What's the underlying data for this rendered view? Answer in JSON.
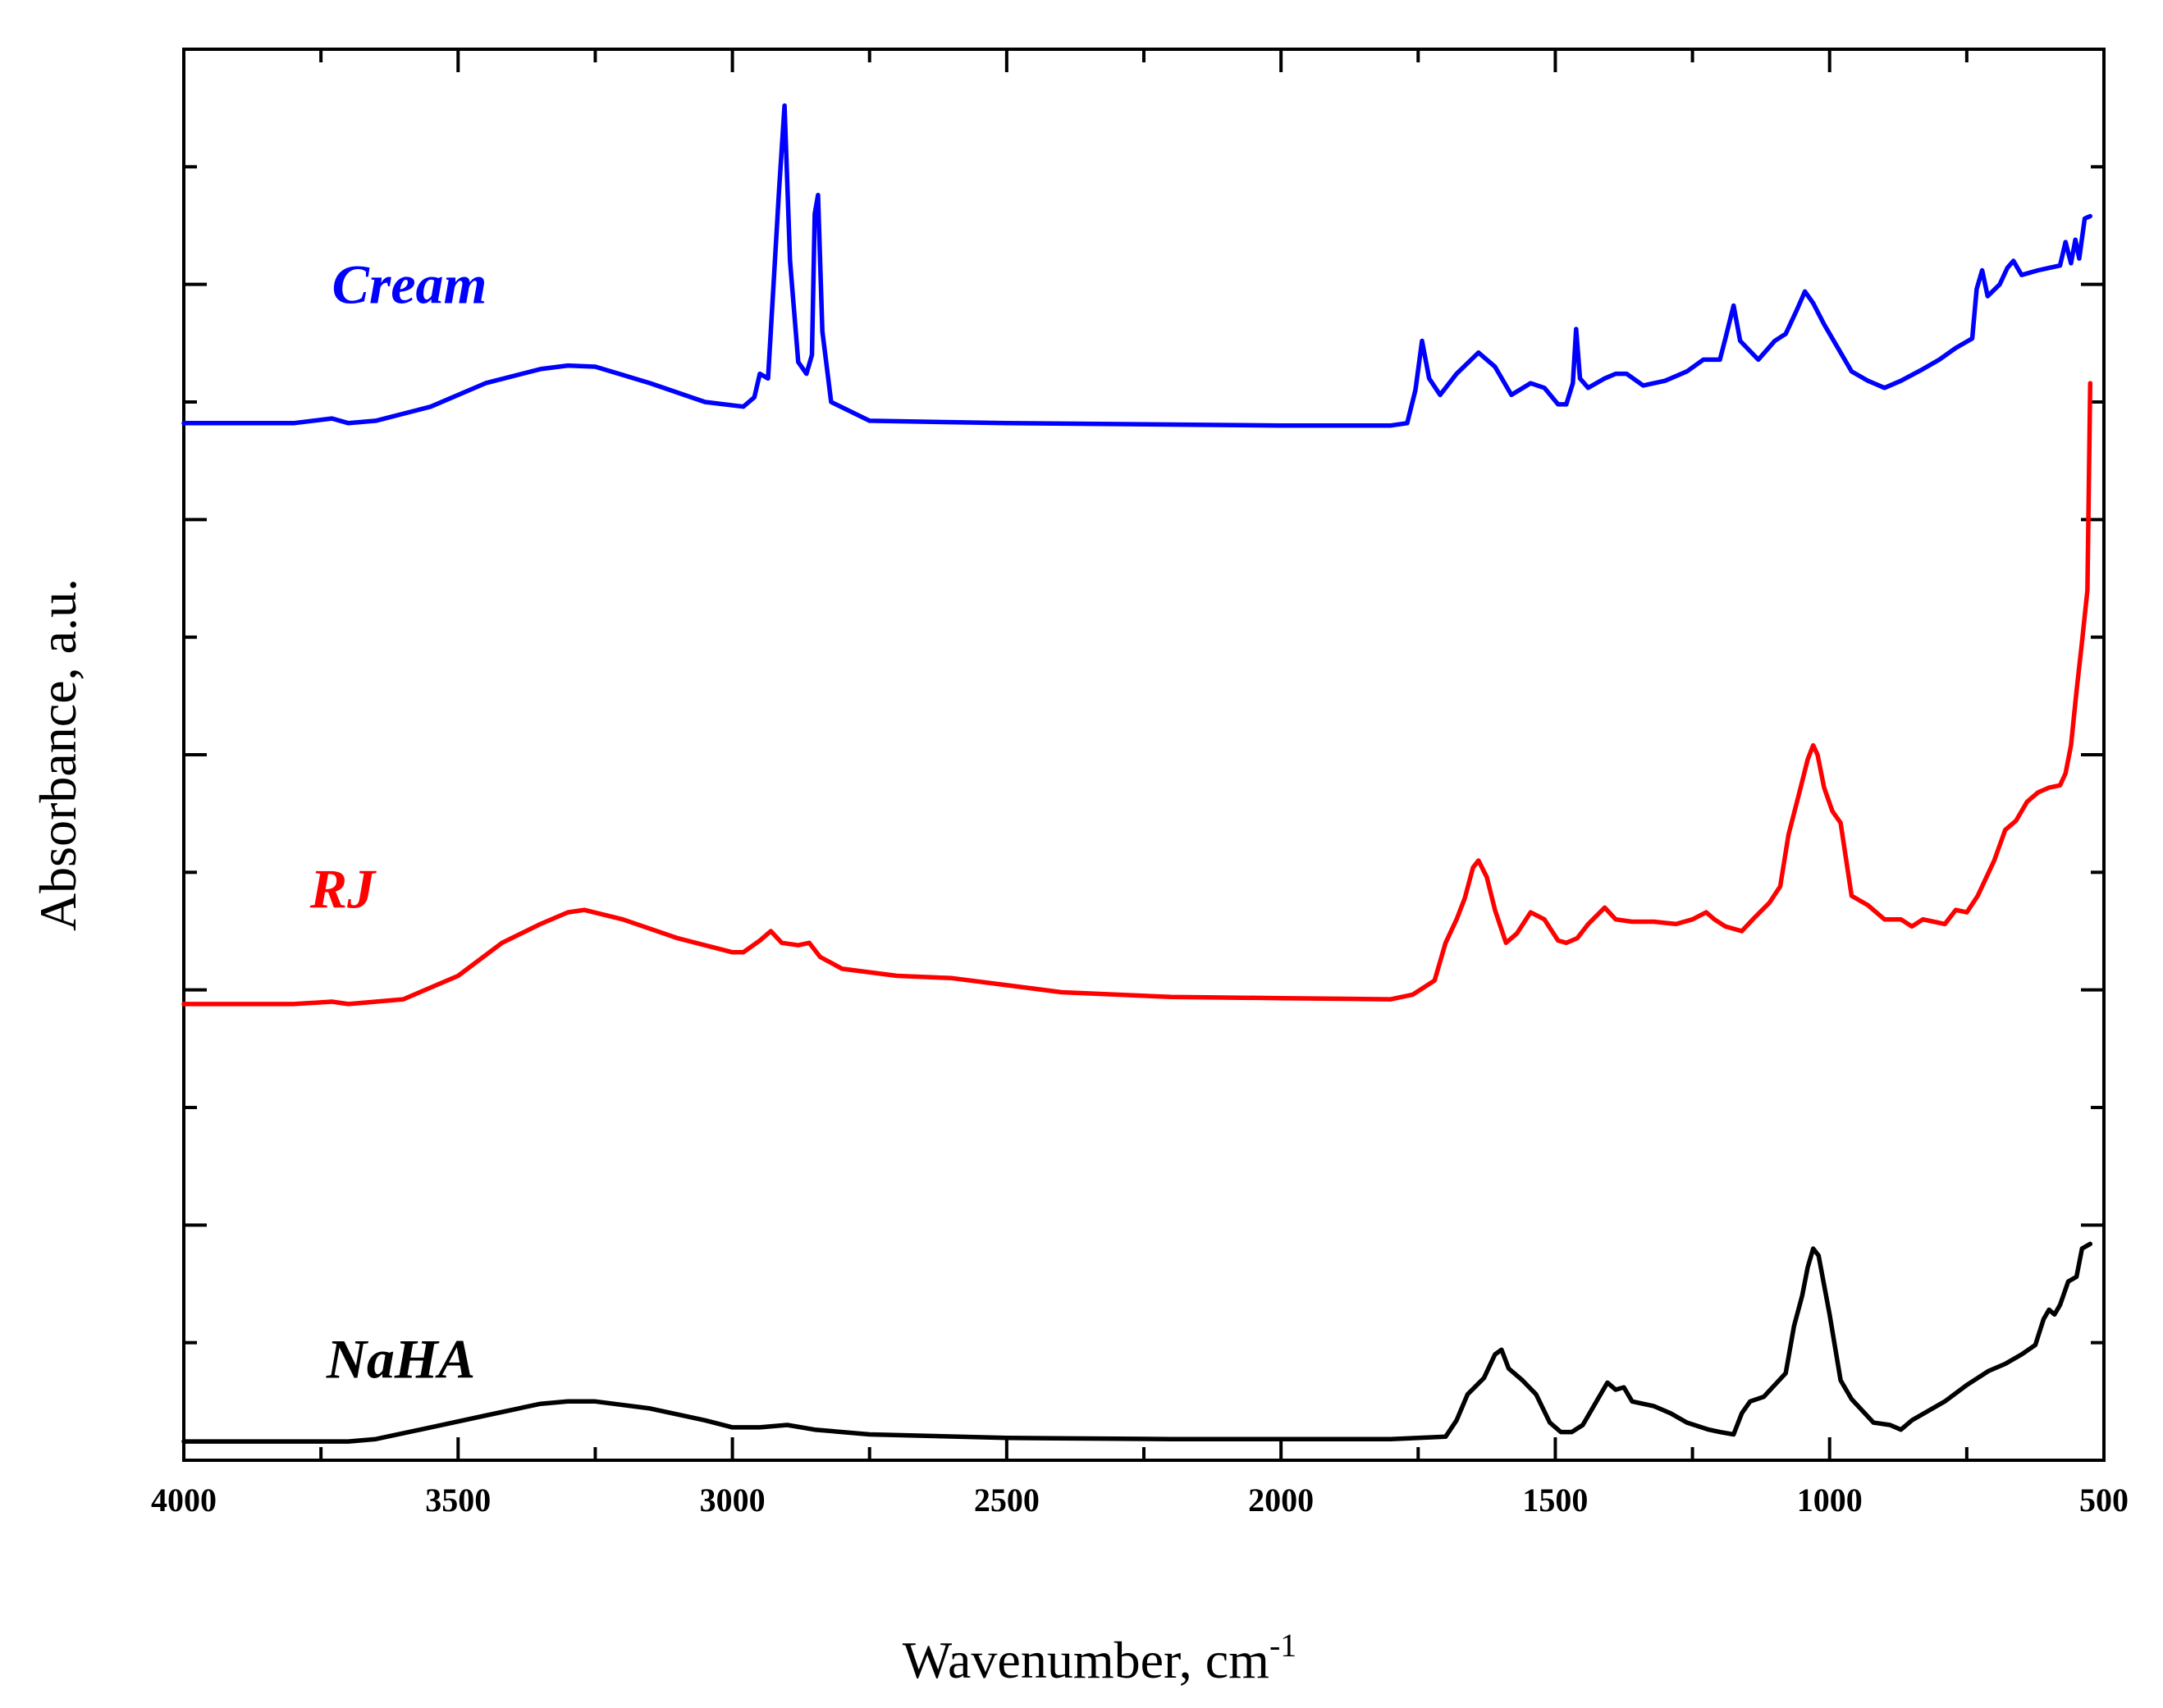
{
  "chart_data": {
    "type": "line",
    "title": "",
    "xlabel": "Wavenumber, cm",
    "xlabel_superscript": "-1",
    "ylabel": "Absorbance, a.u.",
    "xlim": [
      4000,
      500
    ],
    "x_reversed": true,
    "ylim": [
      0,
      6
    ],
    "x_ticks": [
      4000,
      3500,
      3000,
      2500,
      2000,
      1500,
      1000,
      500
    ],
    "x_tick_labels": [
      "4000",
      "3500",
      "3000",
      "2500",
      "2000",
      "1500",
      "1000",
      "500"
    ],
    "x_minor_ticks": [
      3750,
      3250,
      2750,
      2250,
      1750,
      1250,
      750
    ],
    "y_ticks": [
      0,
      0.5,
      1,
      1.5,
      2,
      2.5,
      3,
      3.5,
      4,
      4.5,
      5,
      5.5,
      6
    ],
    "y_tick_labels_shown": false,
    "grid": false,
    "series": [
      {
        "name": "Cream",
        "color": "#0000ff",
        "points": [
          [
            4000,
            4.41
          ],
          [
            3800,
            4.41
          ],
          [
            3730,
            4.43
          ],
          [
            3700,
            4.41
          ],
          [
            3650,
            4.42
          ],
          [
            3550,
            4.48
          ],
          [
            3450,
            4.58
          ],
          [
            3350,
            4.64
          ],
          [
            3300,
            4.655
          ],
          [
            3250,
            4.65
          ],
          [
            3150,
            4.58
          ],
          [
            3050,
            4.5
          ],
          [
            2980,
            4.48
          ],
          [
            2960,
            4.52
          ],
          [
            2950,
            4.62
          ],
          [
            2935,
            4.6
          ],
          [
            2915,
            5.4
          ],
          [
            2905,
            5.76
          ],
          [
            2895,
            5.1
          ],
          [
            2880,
            4.67
          ],
          [
            2865,
            4.62
          ],
          [
            2855,
            4.7
          ],
          [
            2850,
            5.3
          ],
          [
            2844,
            5.38
          ],
          [
            2836,
            4.8
          ],
          [
            2820,
            4.5
          ],
          [
            2750,
            4.42
          ],
          [
            2500,
            4.41
          ],
          [
            2000,
            4.4
          ],
          [
            1800,
            4.4
          ],
          [
            1770,
            4.41
          ],
          [
            1755,
            4.55
          ],
          [
            1743,
            4.76
          ],
          [
            1730,
            4.6
          ],
          [
            1710,
            4.53
          ],
          [
            1680,
            4.62
          ],
          [
            1640,
            4.71
          ],
          [
            1610,
            4.65
          ],
          [
            1580,
            4.53
          ],
          [
            1545,
            4.58
          ],
          [
            1520,
            4.56
          ],
          [
            1495,
            4.49
          ],
          [
            1480,
            4.49
          ],
          [
            1468,
            4.58
          ],
          [
            1462,
            4.81
          ],
          [
            1455,
            4.6
          ],
          [
            1440,
            4.56
          ],
          [
            1410,
            4.6
          ],
          [
            1390,
            4.62
          ],
          [
            1370,
            4.62
          ],
          [
            1340,
            4.57
          ],
          [
            1300,
            4.59
          ],
          [
            1260,
            4.63
          ],
          [
            1230,
            4.68
          ],
          [
            1200,
            4.68
          ],
          [
            1190,
            4.77
          ],
          [
            1175,
            4.91
          ],
          [
            1163,
            4.76
          ],
          [
            1130,
            4.68
          ],
          [
            1100,
            4.76
          ],
          [
            1080,
            4.79
          ],
          [
            1060,
            4.89
          ],
          [
            1045,
            4.97
          ],
          [
            1030,
            4.92
          ],
          [
            1010,
            4.83
          ],
          [
            990,
            4.75
          ],
          [
            960,
            4.63
          ],
          [
            930,
            4.59
          ],
          [
            900,
            4.56
          ],
          [
            870,
            4.59
          ],
          [
            830,
            4.64
          ],
          [
            800,
            4.68
          ],
          [
            770,
            4.73
          ],
          [
            740,
            4.77
          ],
          [
            732,
            4.98
          ],
          [
            722,
            5.06
          ],
          [
            712,
            4.95
          ],
          [
            690,
            5.0
          ],
          [
            676,
            5.07
          ],
          [
            665,
            5.1
          ],
          [
            650,
            5.04
          ],
          [
            620,
            5.06
          ],
          [
            600,
            5.07
          ],
          [
            580,
            5.08
          ],
          [
            570,
            5.18
          ],
          [
            560,
            5.09
          ],
          [
            552,
            5.19
          ],
          [
            545,
            5.11
          ],
          [
            535,
            5.28
          ],
          [
            525,
            5.29
          ]
        ]
      },
      {
        "name": "RJ",
        "color": "#ff0000",
        "points": [
          [
            4000,
            1.94
          ],
          [
            3800,
            1.94
          ],
          [
            3730,
            1.95
          ],
          [
            3700,
            1.94
          ],
          [
            3600,
            1.96
          ],
          [
            3500,
            2.06
          ],
          [
            3420,
            2.2
          ],
          [
            3350,
            2.28
          ],
          [
            3300,
            2.33
          ],
          [
            3270,
            2.34
          ],
          [
            3200,
            2.3
          ],
          [
            3100,
            2.22
          ],
          [
            3000,
            2.16
          ],
          [
            2980,
            2.16
          ],
          [
            2950,
            2.21
          ],
          [
            2930,
            2.25
          ],
          [
            2910,
            2.2
          ],
          [
            2880,
            2.19
          ],
          [
            2860,
            2.2
          ],
          [
            2840,
            2.14
          ],
          [
            2800,
            2.09
          ],
          [
            2700,
            2.06
          ],
          [
            2600,
            2.05
          ],
          [
            2500,
            2.02
          ],
          [
            2400,
            1.99
          ],
          [
            2200,
            1.97
          ],
          [
            2000,
            1.965
          ],
          [
            1800,
            1.96
          ],
          [
            1760,
            1.98
          ],
          [
            1720,
            2.04
          ],
          [
            1700,
            2.2
          ],
          [
            1680,
            2.3
          ],
          [
            1665,
            2.39
          ],
          [
            1650,
            2.52
          ],
          [
            1640,
            2.55
          ],
          [
            1625,
            2.48
          ],
          [
            1610,
            2.34
          ],
          [
            1590,
            2.2
          ],
          [
            1570,
            2.24
          ],
          [
            1545,
            2.33
          ],
          [
            1520,
            2.3
          ],
          [
            1495,
            2.21
          ],
          [
            1480,
            2.2
          ],
          [
            1460,
            2.22
          ],
          [
            1440,
            2.28
          ],
          [
            1410,
            2.35
          ],
          [
            1390,
            2.3
          ],
          [
            1360,
            2.29
          ],
          [
            1320,
            2.29
          ],
          [
            1280,
            2.28
          ],
          [
            1250,
            2.3
          ],
          [
            1225,
            2.33
          ],
          [
            1210,
            2.3
          ],
          [
            1190,
            2.27
          ],
          [
            1175,
            2.26
          ],
          [
            1160,
            2.25
          ],
          [
            1140,
            2.3
          ],
          [
            1110,
            2.37
          ],
          [
            1090,
            2.44
          ],
          [
            1075,
            2.66
          ],
          [
            1055,
            2.84
          ],
          [
            1040,
            2.98
          ],
          [
            1030,
            3.04
          ],
          [
            1022,
            3.0
          ],
          [
            1010,
            2.86
          ],
          [
            995,
            2.76
          ],
          [
            980,
            2.71
          ],
          [
            960,
            2.4
          ],
          [
            930,
            2.36
          ],
          [
            900,
            2.3
          ],
          [
            870,
            2.3
          ],
          [
            850,
            2.27
          ],
          [
            830,
            2.3
          ],
          [
            810,
            2.29
          ],
          [
            790,
            2.28
          ],
          [
            770,
            2.34
          ],
          [
            750,
            2.33
          ],
          [
            730,
            2.4
          ],
          [
            700,
            2.55
          ],
          [
            680,
            2.68
          ],
          [
            660,
            2.72
          ],
          [
            640,
            2.8
          ],
          [
            620,
            2.84
          ],
          [
            600,
            2.86
          ],
          [
            580,
            2.87
          ],
          [
            570,
            2.92
          ],
          [
            560,
            3.04
          ],
          [
            550,
            3.27
          ],
          [
            540,
            3.48
          ],
          [
            530,
            3.7
          ],
          [
            525,
            4.58
          ]
        ]
      },
      {
        "name": "NaHA",
        "color": "#000000",
        "points": [
          [
            4000,
            0.08
          ],
          [
            3700,
            0.08
          ],
          [
            3650,
            0.09
          ],
          [
            3550,
            0.14
          ],
          [
            3450,
            0.19
          ],
          [
            3350,
            0.24
          ],
          [
            3300,
            0.25
          ],
          [
            3250,
            0.25
          ],
          [
            3150,
            0.22
          ],
          [
            3050,
            0.17
          ],
          [
            3000,
            0.14
          ],
          [
            2950,
            0.14
          ],
          [
            2900,
            0.15
          ],
          [
            2850,
            0.13
          ],
          [
            2750,
            0.11
          ],
          [
            2500,
            0.095
          ],
          [
            2200,
            0.09
          ],
          [
            2000,
            0.09
          ],
          [
            1800,
            0.09
          ],
          [
            1700,
            0.1
          ],
          [
            1680,
            0.17
          ],
          [
            1660,
            0.28
          ],
          [
            1630,
            0.35
          ],
          [
            1610,
            0.45
          ],
          [
            1598,
            0.47
          ],
          [
            1585,
            0.39
          ],
          [
            1560,
            0.34
          ],
          [
            1535,
            0.28
          ],
          [
            1510,
            0.16
          ],
          [
            1490,
            0.12
          ],
          [
            1470,
            0.12
          ],
          [
            1450,
            0.15
          ],
          [
            1425,
            0.25
          ],
          [
            1405,
            0.33
          ],
          [
            1390,
            0.3
          ],
          [
            1375,
            0.31
          ],
          [
            1360,
            0.25
          ],
          [
            1320,
            0.23
          ],
          [
            1290,
            0.2
          ],
          [
            1260,
            0.16
          ],
          [
            1220,
            0.13
          ],
          [
            1200,
            0.12
          ],
          [
            1175,
            0.11
          ],
          [
            1160,
            0.2
          ],
          [
            1145,
            0.25
          ],
          [
            1120,
            0.27
          ],
          [
            1080,
            0.37
          ],
          [
            1065,
            0.57
          ],
          [
            1050,
            0.7
          ],
          [
            1040,
            0.82
          ],
          [
            1030,
            0.9
          ],
          [
            1020,
            0.87
          ],
          [
            1000,
            0.62
          ],
          [
            980,
            0.34
          ],
          [
            960,
            0.26
          ],
          [
            940,
            0.21
          ],
          [
            920,
            0.16
          ],
          [
            890,
            0.15
          ],
          [
            870,
            0.13
          ],
          [
            850,
            0.17
          ],
          [
            820,
            0.21
          ],
          [
            790,
            0.25
          ],
          [
            750,
            0.32
          ],
          [
            710,
            0.38
          ],
          [
            680,
            0.41
          ],
          [
            650,
            0.45
          ],
          [
            625,
            0.49
          ],
          [
            610,
            0.6
          ],
          [
            600,
            0.64
          ],
          [
            590,
            0.62
          ],
          [
            580,
            0.66
          ],
          [
            565,
            0.76
          ],
          [
            550,
            0.78
          ],
          [
            540,
            0.9
          ],
          [
            525,
            0.92
          ]
        ]
      }
    ],
    "annotations": [
      {
        "text": "Cream",
        "color": "#0000ff",
        "x": 3730,
        "y": 4.92
      },
      {
        "text": "RJ",
        "color": "#ff0000",
        "x": 3770,
        "y": 2.35
      },
      {
        "text": "NaHA",
        "color": "#000000",
        "x": 3740,
        "y": 0.35
      }
    ]
  }
}
